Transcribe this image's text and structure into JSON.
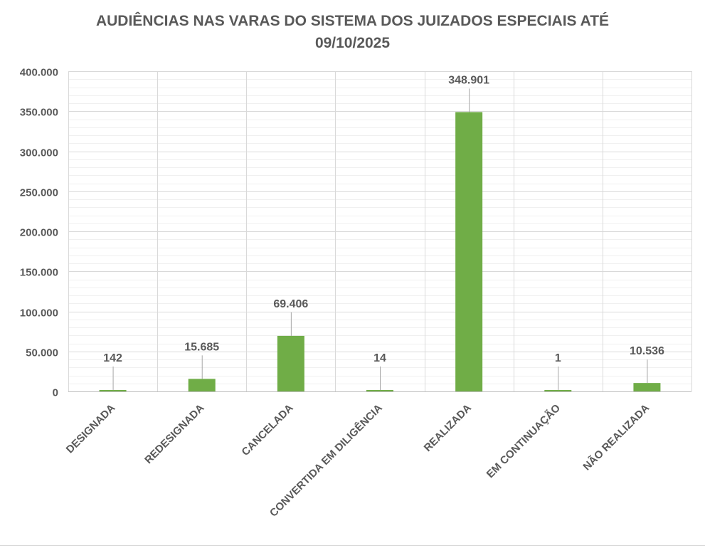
{
  "chart_data": {
    "type": "bar",
    "title_line1": "AUDIÊNCIAS NAS VARAS DO SISTEMA DOS JUIZADOS ESPECIAIS ATÉ",
    "title_line2": "09/10/2025",
    "xlabel": "",
    "ylabel": "",
    "categories": [
      "DESIGNADA",
      "REDESIGNADA",
      "CANCELADA",
      "CONVERTIDA EM DILIGÊNCIA",
      "REALIZADA",
      "EM CONTINUAÇÃO",
      "NÃO REALIZADA"
    ],
    "values": [
      142,
      15685,
      69406,
      14,
      348901,
      1,
      10536
    ],
    "data_labels": [
      "142",
      "15.685",
      "69.406",
      "14",
      "348.901",
      "1",
      "10.536"
    ],
    "ylim": [
      0,
      400000
    ],
    "y_ticks": [
      0,
      50000,
      100000,
      150000,
      200000,
      250000,
      300000,
      350000,
      400000
    ],
    "y_tick_labels": [
      "0",
      "50.000",
      "100.000",
      "150.000",
      "200.000",
      "250.000",
      "300.000",
      "350.000",
      "400.000"
    ],
    "grid": true,
    "legend": "none",
    "bar_color": "#70AD47",
    "text_color": "#595959"
  }
}
